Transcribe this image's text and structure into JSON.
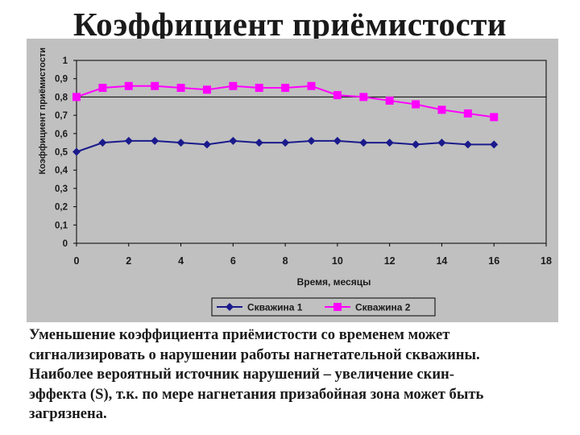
{
  "title": "Коэффициент приёмистости",
  "caption_lines": [
    "Уменьшение коэффициента приёмистости со временем может",
    "сигнализировать о нарушении работы нагнетательной скважины.",
    "Наиболее вероятный источник нарушений – увеличение скин-",
    "эффекта (S), т.к. по мере нагнетания призабойная зона может быть",
    "загрязнена."
  ],
  "colors": {
    "series1": "#1a1a8c",
    "series2": "#ff00ff",
    "background": "#c0c0c0"
  },
  "chart_data": {
    "type": "line",
    "xlabel": "Время, месяцы",
    "ylabel": "Коэффициент приёмистости",
    "xlim": [
      0,
      18
    ],
    "ylim": [
      0,
      1
    ],
    "xticks": [
      "0",
      "2",
      "4",
      "6",
      "8",
      "10",
      "12",
      "14",
      "16",
      "18"
    ],
    "yticks": [
      "0",
      "0,1",
      "0,2",
      "0,3",
      "0,4",
      "0,5",
      "0,6",
      "0,7",
      "0,8",
      "0,9",
      "1"
    ],
    "grid": "horizontal line at 0.8",
    "reference_y": 0.8,
    "legend": "bottom",
    "series": [
      {
        "name": "Скважина 1",
        "marker": "diamond",
        "color": "#1a1a8c",
        "x": [
          0,
          1,
          2,
          3,
          4,
          5,
          6,
          7,
          8,
          9,
          10,
          11,
          12,
          13,
          14,
          15,
          16
        ],
        "y": [
          0.5,
          0.55,
          0.56,
          0.56,
          0.55,
          0.54,
          0.56,
          0.55,
          0.55,
          0.56,
          0.56,
          0.55,
          0.55,
          0.54,
          0.55,
          0.54,
          0.54
        ]
      },
      {
        "name": "Скважина 2",
        "marker": "square",
        "color": "#ff00ff",
        "x": [
          0,
          1,
          2,
          3,
          4,
          5,
          6,
          7,
          8,
          9,
          10,
          11,
          12,
          13,
          14,
          15,
          16
        ],
        "y": [
          0.8,
          0.85,
          0.86,
          0.86,
          0.85,
          0.84,
          0.86,
          0.85,
          0.85,
          0.86,
          0.81,
          0.8,
          0.78,
          0.76,
          0.73,
          0.71,
          0.69
        ]
      }
    ]
  }
}
